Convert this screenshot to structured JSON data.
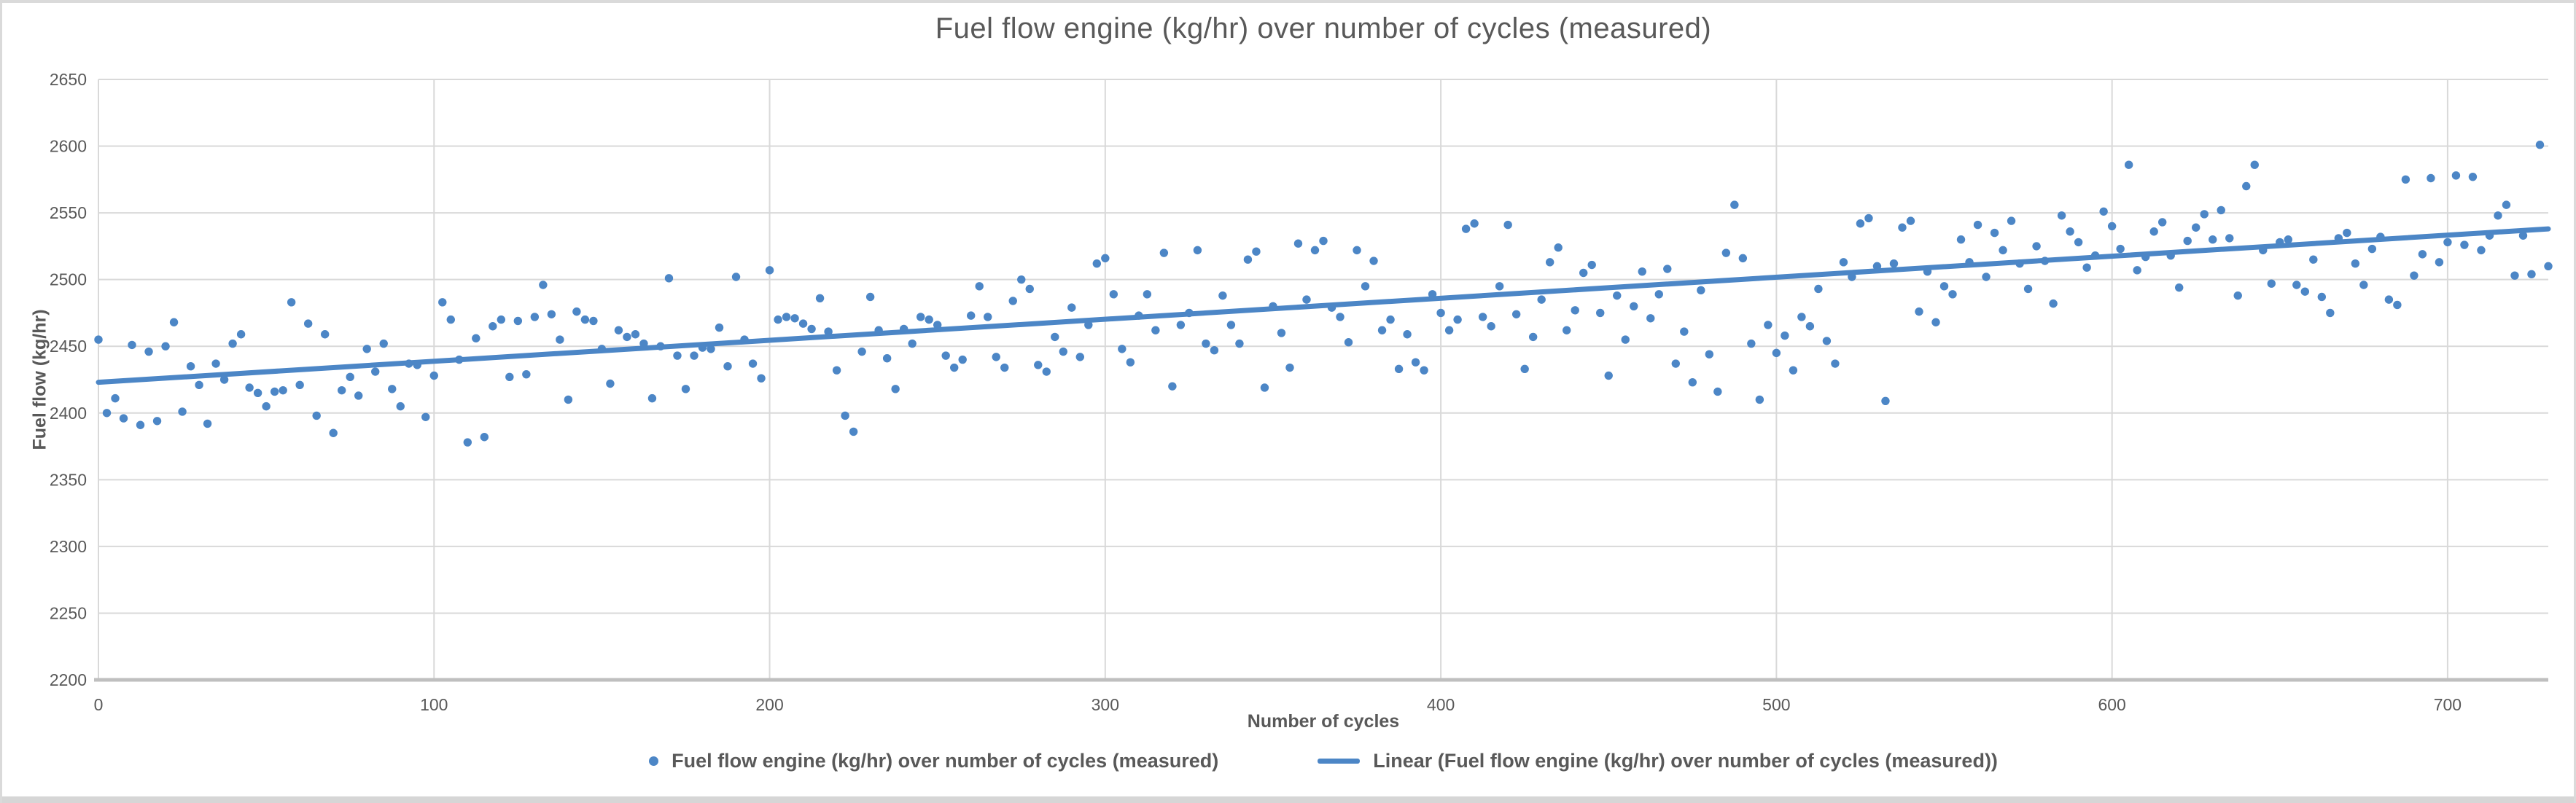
{
  "colors": {
    "accent_blue": "#4C86C6",
    "gridline": "#D9D9D9",
    "axis_line": "#BFBFBF",
    "text": "#595959",
    "window_border": "#DADADA",
    "bottom_bar": "#D6D6D6"
  },
  "chart_data": {
    "type": "scatter",
    "title": "Fuel flow engine (kg/hr) over number of cycles (measured)",
    "xlabel": "Number of cycles",
    "ylabel": "Fuel flow (kg/hr)",
    "xlim": [
      0,
      730
    ],
    "ylim": [
      2200,
      2650
    ],
    "x_ticks": [
      0,
      100,
      200,
      300,
      400,
      500,
      600,
      700
    ],
    "y_ticks": [
      2200,
      2250,
      2300,
      2350,
      2400,
      2450,
      2500,
      2550,
      2600,
      2650
    ],
    "grid": true,
    "legend_position": "bottom",
    "series": [
      {
        "name": "Fuel flow engine (kg/hr) over number of cycles (measured)",
        "type": "scatter",
        "color": "#4C86C6",
        "marker_radius": 5.7,
        "points": [
          [
            0,
            2455
          ],
          [
            2.5,
            2400
          ],
          [
            5,
            2411
          ],
          [
            7.5,
            2396
          ],
          [
            10,
            2451
          ],
          [
            12.5,
            2391
          ],
          [
            15,
            2446
          ],
          [
            17.5,
            2394
          ],
          [
            20,
            2450
          ],
          [
            22.5,
            2468
          ],
          [
            25,
            2401
          ],
          [
            27.5,
            2435
          ],
          [
            30,
            2421
          ],
          [
            32.5,
            2392
          ],
          [
            35,
            2437
          ],
          [
            37.5,
            2425
          ],
          [
            40,
            2452
          ],
          [
            42.5,
            2459
          ],
          [
            45,
            2419
          ],
          [
            47.5,
            2415
          ],
          [
            50,
            2405
          ],
          [
            52.5,
            2416
          ],
          [
            55,
            2417
          ],
          [
            57.5,
            2483
          ],
          [
            60,
            2421
          ],
          [
            62.5,
            2467
          ],
          [
            65,
            2398
          ],
          [
            67.5,
            2459
          ],
          [
            70,
            2385
          ],
          [
            72.5,
            2417
          ],
          [
            75,
            2427
          ],
          [
            77.5,
            2413
          ],
          [
            80,
            2448
          ],
          [
            82.5,
            2431
          ],
          [
            85,
            2452
          ],
          [
            87.5,
            2418
          ],
          [
            90,
            2405
          ],
          [
            92.5,
            2437
          ],
          [
            95,
            2436
          ],
          [
            97.5,
            2397
          ],
          [
            100,
            2428
          ],
          [
            102.5,
            2483
          ],
          [
            105,
            2470
          ],
          [
            107.5,
            2440
          ],
          [
            110,
            2378
          ],
          [
            112.5,
            2456
          ],
          [
            115,
            2382
          ],
          [
            117.5,
            2465
          ],
          [
            120,
            2470
          ],
          [
            122.5,
            2427
          ],
          [
            125,
            2469
          ],
          [
            127.5,
            2429
          ],
          [
            130,
            2472
          ],
          [
            132.5,
            2496
          ],
          [
            135,
            2474
          ],
          [
            137.5,
            2455
          ],
          [
            140,
            2410
          ],
          [
            142.5,
            2476
          ],
          [
            145,
            2470
          ],
          [
            147.5,
            2469
          ],
          [
            150,
            2448
          ],
          [
            152.5,
            2422
          ],
          [
            155,
            2462
          ],
          [
            157.5,
            2457
          ],
          [
            160,
            2459
          ],
          [
            162.5,
            2452
          ],
          [
            165,
            2411
          ],
          [
            167.5,
            2450
          ],
          [
            170,
            2501
          ],
          [
            172.5,
            2443
          ],
          [
            175,
            2418
          ],
          [
            177.5,
            2443
          ],
          [
            180,
            2449
          ],
          [
            182.5,
            2448
          ],
          [
            185,
            2464
          ],
          [
            187.5,
            2435
          ],
          [
            190,
            2502
          ],
          [
            192.5,
            2455
          ],
          [
            195,
            2437
          ],
          [
            197.5,
            2426
          ],
          [
            200,
            2507
          ],
          [
            202.5,
            2470
          ],
          [
            205,
            2472
          ],
          [
            207.5,
            2471
          ],
          [
            210,
            2467
          ],
          [
            212.5,
            2463
          ],
          [
            215,
            2486
          ],
          [
            217.5,
            2461
          ],
          [
            220,
            2432
          ],
          [
            222.5,
            2398
          ],
          [
            225,
            2386
          ],
          [
            227.5,
            2446
          ],
          [
            230,
            2487
          ],
          [
            232.5,
            2462
          ],
          [
            235,
            2441
          ],
          [
            237.5,
            2418
          ],
          [
            240,
            2463
          ],
          [
            242.5,
            2452
          ],
          [
            245,
            2472
          ],
          [
            247.5,
            2470
          ],
          [
            250,
            2466
          ],
          [
            252.5,
            2443
          ],
          [
            255,
            2434
          ],
          [
            257.5,
            2440
          ],
          [
            260,
            2473
          ],
          [
            262.5,
            2495
          ],
          [
            265,
            2472
          ],
          [
            267.5,
            2442
          ],
          [
            270,
            2434
          ],
          [
            272.5,
            2484
          ],
          [
            275,
            2500
          ],
          [
            277.5,
            2493
          ],
          [
            280,
            2436
          ],
          [
            282.5,
            2431
          ],
          [
            285,
            2457
          ],
          [
            287.5,
            2446
          ],
          [
            290,
            2479
          ],
          [
            292.5,
            2442
          ],
          [
            295,
            2466
          ],
          [
            297.5,
            2512
          ],
          [
            300,
            2516
          ],
          [
            302.5,
            2489
          ],
          [
            305,
            2448
          ],
          [
            307.5,
            2438
          ],
          [
            310,
            2473
          ],
          [
            312.5,
            2489
          ],
          [
            315,
            2462
          ],
          [
            317.5,
            2520
          ],
          [
            320,
            2420
          ],
          [
            322.5,
            2466
          ],
          [
            325,
            2475
          ],
          [
            327.5,
            2522
          ],
          [
            330,
            2452
          ],
          [
            332.5,
            2447
          ],
          [
            335,
            2488
          ],
          [
            337.5,
            2466
          ],
          [
            340,
            2452
          ],
          [
            342.5,
            2515
          ],
          [
            345,
            2521
          ],
          [
            347.5,
            2419
          ],
          [
            350,
            2480
          ],
          [
            352.5,
            2460
          ],
          [
            355,
            2434
          ],
          [
            357.5,
            2527
          ],
          [
            360,
            2485
          ],
          [
            362.5,
            2522
          ],
          [
            365,
            2529
          ],
          [
            367.5,
            2479
          ],
          [
            370,
            2472
          ],
          [
            372.5,
            2453
          ],
          [
            375,
            2522
          ],
          [
            377.5,
            2495
          ],
          [
            380,
            2514
          ],
          [
            382.5,
            2462
          ],
          [
            385,
            2470
          ],
          [
            387.5,
            2433
          ],
          [
            390,
            2459
          ],
          [
            392.5,
            2438
          ],
          [
            395,
            2432
          ],
          [
            397.5,
            2489
          ],
          [
            400,
            2475
          ],
          [
            402.5,
            2462
          ],
          [
            405,
            2470
          ],
          [
            407.5,
            2538
          ],
          [
            410,
            2542
          ],
          [
            412.5,
            2472
          ],
          [
            415,
            2465
          ],
          [
            417.5,
            2495
          ],
          [
            420,
            2541
          ],
          [
            422.5,
            2474
          ],
          [
            425,
            2433
          ],
          [
            427.5,
            2457
          ],
          [
            430,
            2485
          ],
          [
            432.5,
            2513
          ],
          [
            435,
            2524
          ],
          [
            437.5,
            2462
          ],
          [
            440,
            2477
          ],
          [
            442.5,
            2505
          ],
          [
            445,
            2511
          ],
          [
            447.5,
            2475
          ],
          [
            450,
            2428
          ],
          [
            452.5,
            2488
          ],
          [
            455,
            2455
          ],
          [
            457.5,
            2480
          ],
          [
            460,
            2506
          ],
          [
            462.5,
            2471
          ],
          [
            465,
            2489
          ],
          [
            467.5,
            2508
          ],
          [
            470,
            2437
          ],
          [
            472.5,
            2461
          ],
          [
            475,
            2423
          ],
          [
            477.5,
            2492
          ],
          [
            480,
            2444
          ],
          [
            482.5,
            2416
          ],
          [
            485,
            2520
          ],
          [
            487.5,
            2556
          ],
          [
            490,
            2516
          ],
          [
            492.5,
            2452
          ],
          [
            495,
            2410
          ],
          [
            497.5,
            2466
          ],
          [
            500,
            2445
          ],
          [
            502.5,
            2458
          ],
          [
            505,
            2432
          ],
          [
            507.5,
            2472
          ],
          [
            510,
            2465
          ],
          [
            512.5,
            2493
          ],
          [
            515,
            2454
          ],
          [
            517.5,
            2437
          ],
          [
            520,
            2513
          ],
          [
            522.5,
            2502
          ],
          [
            525,
            2542
          ],
          [
            527.5,
            2546
          ],
          [
            530,
            2510
          ],
          [
            532.5,
            2409
          ],
          [
            535,
            2512
          ],
          [
            537.5,
            2539
          ],
          [
            540,
            2544
          ],
          [
            542.5,
            2476
          ],
          [
            545,
            2506
          ],
          [
            547.5,
            2468
          ],
          [
            550,
            2495
          ],
          [
            552.5,
            2489
          ],
          [
            555,
            2530
          ],
          [
            557.5,
            2513
          ],
          [
            560,
            2541
          ],
          [
            562.5,
            2502
          ],
          [
            565,
            2535
          ],
          [
            567.5,
            2522
          ],
          [
            570,
            2544
          ],
          [
            572.5,
            2512
          ],
          [
            575,
            2493
          ],
          [
            577.5,
            2525
          ],
          [
            580,
            2514
          ],
          [
            582.5,
            2482
          ],
          [
            585,
            2548
          ],
          [
            587.5,
            2536
          ],
          [
            590,
            2528
          ],
          [
            592.5,
            2509
          ],
          [
            595,
            2518
          ],
          [
            597.5,
            2551
          ],
          [
            600,
            2540
          ],
          [
            602.5,
            2523
          ],
          [
            605,
            2586
          ],
          [
            607.5,
            2507
          ],
          [
            610,
            2517
          ],
          [
            612.5,
            2536
          ],
          [
            615,
            2543
          ],
          [
            617.5,
            2518
          ],
          [
            620,
            2494
          ],
          [
            622.5,
            2529
          ],
          [
            625,
            2539
          ],
          [
            627.5,
            2549
          ],
          [
            630,
            2530
          ],
          [
            632.5,
            2552
          ],
          [
            635,
            2531
          ],
          [
            637.5,
            2488
          ],
          [
            640,
            2570
          ],
          [
            642.5,
            2586
          ],
          [
            645,
            2522
          ],
          [
            647.5,
            2497
          ],
          [
            650,
            2528
          ],
          [
            652.5,
            2530
          ],
          [
            655,
            2496
          ],
          [
            657.5,
            2491
          ],
          [
            660,
            2515
          ],
          [
            662.5,
            2487
          ],
          [
            665,
            2475
          ],
          [
            667.5,
            2531
          ],
          [
            670,
            2535
          ],
          [
            672.5,
            2512
          ],
          [
            675,
            2496
          ],
          [
            677.5,
            2523
          ],
          [
            680,
            2532
          ],
          [
            682.5,
            2485
          ],
          [
            685,
            2481
          ],
          [
            687.5,
            2575
          ],
          [
            690,
            2503
          ],
          [
            692.5,
            2519
          ],
          [
            695,
            2576
          ],
          [
            697.5,
            2513
          ],
          [
            700,
            2528
          ],
          [
            702.5,
            2578
          ],
          [
            705,
            2526
          ],
          [
            707.5,
            2577
          ],
          [
            710,
            2522
          ],
          [
            712.5,
            2533
          ],
          [
            715,
            2548
          ],
          [
            717.5,
            2556
          ],
          [
            720,
            2503
          ],
          [
            722.5,
            2533
          ],
          [
            725,
            2504
          ],
          [
            727.5,
            2601
          ],
          [
            730,
            2510
          ]
        ]
      },
      {
        "name": "Linear (Fuel flow engine (kg/hr) over number of cycles (measured))",
        "type": "line",
        "color": "#4C86C6",
        "stroke_width": 7,
        "points": [
          [
            0,
            2423
          ],
          [
            730,
            2538
          ]
        ]
      }
    ]
  }
}
